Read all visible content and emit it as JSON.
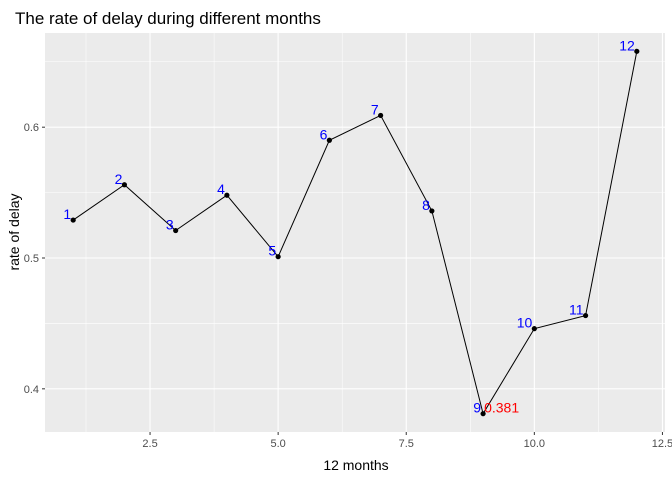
{
  "chart_data": {
    "type": "line",
    "title": "The rate of delay during different months",
    "xlabel": "12 months",
    "ylabel": "rate of delay",
    "xlim": [
      0.45,
      12.55
    ],
    "ylim": [
      0.367,
      0.672
    ],
    "xticks": [
      2.5,
      5.0,
      7.5,
      10.0,
      12.5
    ],
    "xtick_labels": [
      "2.5",
      "5.0",
      "7.5",
      "10.0",
      "12.5"
    ],
    "yticks": [
      0.4,
      0.5,
      0.6
    ],
    "ytick_labels": [
      "0.4",
      "0.5",
      "0.6"
    ],
    "grid": true,
    "series": [
      {
        "x": [
          1,
          2,
          3,
          4,
          5,
          6,
          7,
          8,
          9,
          10,
          11,
          12
        ],
        "values": [
          0.529,
          0.556,
          0.521,
          0.548,
          0.501,
          0.59,
          0.609,
          0.536,
          0.381,
          0.446,
          0.456,
          0.658
        ],
        "labels": [
          "1",
          "2",
          "3",
          "4",
          "5",
          "6",
          "7",
          "8",
          "9",
          "10",
          "11",
          "12"
        ]
      }
    ],
    "annotations": [
      {
        "x": 9,
        "y": 0.381,
        "text": "0.381",
        "color": "#ff0000"
      }
    ],
    "colors": {
      "panel_background": "#ebebeb",
      "grid_major": "#ffffff",
      "line": "#000000",
      "point": "#000000",
      "point_label": "#0000ff",
      "annotation": "#ff0000"
    }
  }
}
